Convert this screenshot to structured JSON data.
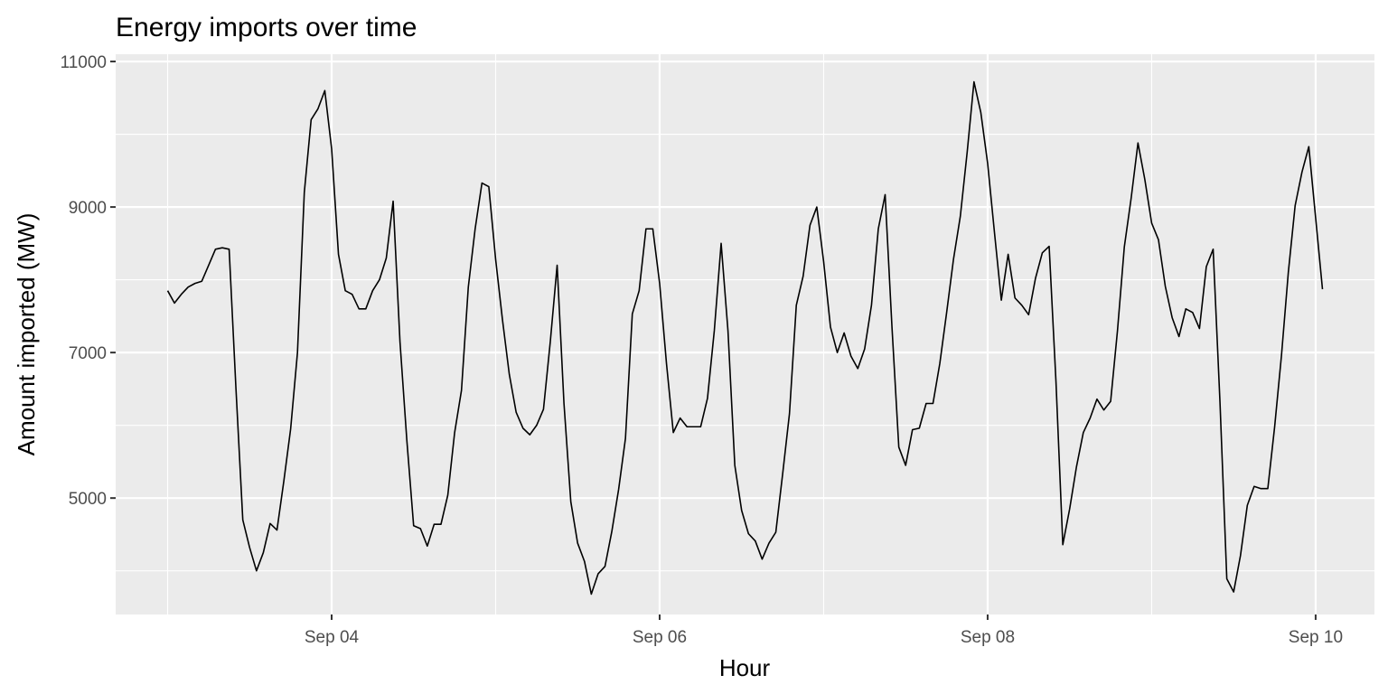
{
  "chart_data": {
    "type": "line",
    "title": "Energy imports over time",
    "xlabel": "Hour",
    "ylabel": "Amount imported (MW)",
    "ylim": [
      3400,
      11100
    ],
    "y_ticks": [
      5000,
      7000,
      9000,
      11000
    ],
    "x_tick_labels": [
      "Sep 04",
      "Sep 06",
      "Sep 08",
      "Sep 10"
    ],
    "x_tick_days": [
      4,
      6,
      8,
      10
    ],
    "x_start_day": 3,
    "step_hours": 1,
    "colors": {
      "panel": "#ebebeb",
      "grid": "#ffffff",
      "line": "#000000",
      "tick": "#333333"
    },
    "grid": true,
    "series": [
      {
        "values": [
          7850,
          7680,
          7800,
          7900,
          7950,
          7980,
          8200,
          8420,
          8440,
          8420,
          6500,
          4700,
          4320,
          4000,
          4250,
          4650,
          4560,
          5230,
          5950,
          7000,
          9200,
          10200,
          10350,
          10600,
          9800,
          8350,
          7850,
          7800,
          7600,
          7600,
          7850,
          8000,
          8300,
          9080,
          7150,
          5800,
          4620,
          4580,
          4340,
          4640,
          4640,
          5040,
          5900,
          6480,
          7900,
          8700,
          9330,
          9280,
          8280,
          7450,
          6700,
          6180,
          5960,
          5870,
          6000,
          6220,
          7150,
          8200,
          6300,
          4950,
          4380,
          4130,
          3680,
          3960,
          4060,
          4540,
          5120,
          5820,
          7530,
          7850,
          8700,
          8700,
          7950,
          6850,
          5900,
          6100,
          5980,
          5980,
          5980,
          6370,
          7300,
          8500,
          7300,
          5450,
          4830,
          4510,
          4410,
          4160,
          4380,
          4530,
          5330,
          6160,
          7650,
          8050,
          8750,
          9000,
          8250,
          7350,
          7000,
          7270,
          6950,
          6780,
          7050,
          7650,
          8700,
          9170,
          7350,
          5700,
          5450,
          5940,
          5960,
          6300,
          6300,
          6850,
          7550,
          8280,
          8870,
          9750,
          10720,
          10300,
          9600,
          8650,
          7720,
          8350,
          7750,
          7650,
          7520,
          8020,
          8370,
          8460,
          6600,
          4360,
          4850,
          5430,
          5900,
          6100,
          6360,
          6210,
          6330,
          7300,
          8450,
          9120,
          9880,
          9380,
          8780,
          8550,
          7910,
          7480,
          7220,
          7600,
          7550,
          7330,
          8180,
          8420,
          6320,
          3890,
          3710,
          4210,
          4900,
          5160,
          5130,
          5130,
          5980,
          6960,
          8100,
          9020,
          9480,
          9830,
          8850,
          7870
        ]
      }
    ]
  }
}
